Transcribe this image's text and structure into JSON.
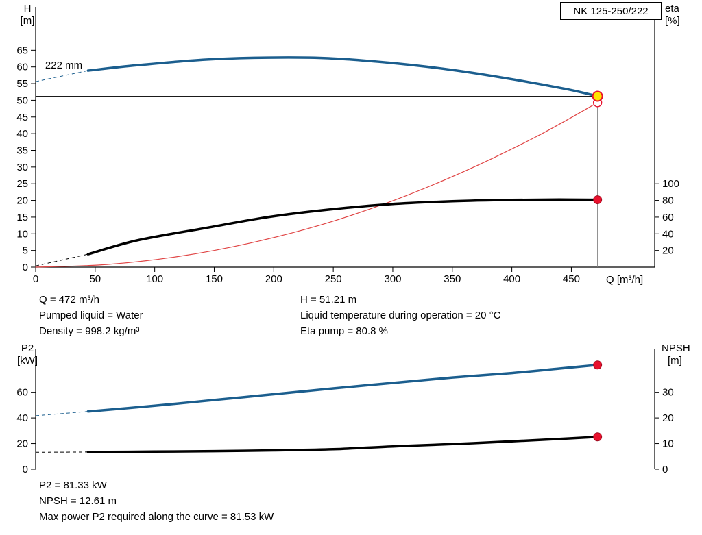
{
  "colors": {
    "axis": "#000000",
    "marker_red": "#e8112d",
    "marker_red_edge": "#9e0b1f",
    "marker_yellow": "#ffe400",
    "duty_hline": "#1a1a1a",
    "duty_vline": "#808080"
  },
  "chart_data": [
    {
      "type": "line",
      "title": "NK 125-250/222",
      "xlabel": "Q [m³/h]",
      "ylabel_left_lines": [
        "H",
        "[m]"
      ],
      "ylabel_right_lines": [
        "eta",
        "[%]"
      ],
      "xlim": [
        0,
        520
      ],
      "x_ticks": [
        0,
        50,
        100,
        150,
        200,
        250,
        300,
        350,
        400,
        450
      ],
      "ylim_left": [
        0,
        78
      ],
      "y_ticks_left": [
        0,
        5,
        10,
        15,
        20,
        25,
        30,
        35,
        40,
        45,
        50,
        55,
        60,
        65
      ],
      "ylim_right": [
        0,
        312
      ],
      "y_ticks_right": [
        20,
        40,
        60,
        80,
        100
      ],
      "grid": false,
      "series": [
        {
          "name": "system-curve",
          "axis": "left",
          "color": "#e04545",
          "width": 1.2,
          "x": [
            0,
            60,
            120,
            180,
            240,
            300,
            360,
            420,
            472
          ],
          "y": [
            0,
            0.8,
            3.2,
            7.2,
            12.7,
            19.9,
            28.7,
            39.0,
            49.3
          ]
        },
        {
          "name": "efficiency-curve",
          "axis": "right",
          "color": "#000000",
          "width": 3.5,
          "x": [
            44,
            85,
            143,
            195,
            246,
            298,
            350,
            400,
            440,
            472
          ],
          "y": [
            15.5,
            32,
            47,
            60,
            69,
            75.5,
            79,
            80.6,
            81,
            80.8
          ],
          "dash_ext": {
            "x": [
              0,
              44
            ],
            "y": [
              1.5,
              15.5
            ]
          }
        },
        {
          "name": "head-curve",
          "axis": "left",
          "color": "#1b5e8e",
          "width": 3.5,
          "x": [
            44,
            85,
            143,
            195,
            246,
            298,
            350,
            402,
            448,
            472
          ],
          "y": [
            58.9,
            60.5,
            62.2,
            62.8,
            62.6,
            61.2,
            59.1,
            56.2,
            53.2,
            51.21
          ],
          "dash_ext": {
            "x": [
              0,
              44
            ],
            "y": [
              55.6,
              58.9
            ]
          }
        }
      ],
      "duty_point": {
        "q": 472,
        "h": 51.21,
        "eta": 80.8,
        "system_h": 49.3
      },
      "impeller_label": {
        "text": "222 mm",
        "x": 8,
        "y": 59.5
      }
    },
    {
      "type": "line",
      "title": "",
      "xlabel": "",
      "ylabel_left_lines": [
        "P2",
        "[kW]"
      ],
      "ylabel_right_lines": [
        "NPSH",
        "[m]"
      ],
      "xlim": [
        0,
        520
      ],
      "ylim_left": [
        0,
        94
      ],
      "y_ticks_left": [
        0,
        20,
        40,
        60
      ],
      "ylim_right": [
        0,
        47
      ],
      "y_ticks_right": [
        0,
        10,
        20,
        30
      ],
      "grid": false,
      "series": [
        {
          "name": "p2-curve",
          "axis": "left",
          "color": "#1b5e8e",
          "width": 3.5,
          "x": [
            44,
            100,
            150,
            200,
            250,
            300,
            350,
            400,
            440,
            472
          ],
          "y": [
            45,
            49.5,
            54,
            58.5,
            63,
            67.3,
            71.5,
            75,
            78.5,
            81.33
          ],
          "dash_ext": {
            "x": [
              0,
              44
            ],
            "y": [
              41.7,
              45
            ]
          },
          "end_marker": "red-dot"
        },
        {
          "name": "npsh-curve",
          "axis": "right",
          "color": "#000000",
          "width": 3.5,
          "x": [
            44,
            100,
            150,
            200,
            250,
            300,
            350,
            400,
            440,
            472
          ],
          "y": [
            6.7,
            6.85,
            7.05,
            7.35,
            7.8,
            8.9,
            9.8,
            10.9,
            11.8,
            12.61
          ],
          "dash_ext": {
            "x": [
              0,
              44
            ],
            "y": [
              6.6,
              6.7
            ]
          },
          "end_marker": "red-dot"
        }
      ]
    }
  ],
  "info_top": {
    "left": [
      "Q = 472 m³/h",
      "Pumped liquid = Water",
      "Density = 998.2 kg/m³"
    ],
    "right": [
      "H = 51.21 m",
      "Liquid temperature during operation = 20 °C",
      "Eta pump = 80.8 %"
    ]
  },
  "info_bottom": [
    "P2 = 81.33 kW",
    "NPSH = 12.61 m",
    "Max power P2 required along the curve = 81.53 kW"
  ]
}
